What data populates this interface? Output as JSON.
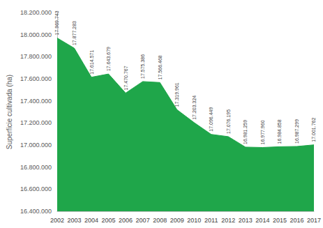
{
  "chart_data": {
    "type": "area",
    "y_label": "Superficie cultivada (ha)",
    "categories": [
      "2002",
      "2003",
      "2004",
      "2005",
      "2006",
      "2007",
      "2008",
      "2009",
      "2010",
      "2011",
      "2012",
      "2013",
      "2014",
      "2015",
      "2016",
      "2017"
    ],
    "values": [
      17969743,
      17877283,
      17614571,
      17643679,
      17470767,
      17575386,
      17566468,
      17319961,
      17203324,
      17096449,
      17076195,
      16981259,
      16977960,
      16984858,
      16987299,
      17001762
    ],
    "value_labels": [
      "17.969.743",
      "17.877.283",
      "17.614.571",
      "17.643.679",
      "17.470.767",
      "17.575.386",
      "17.566.468",
      "17.319.961",
      "17.203.324",
      "17.096.449",
      "17.076.195",
      "16.981.259",
      "16.977.960",
      "16.984.858",
      "16.987.299",
      "17.001.762"
    ],
    "data_labels": true,
    "color": "#1fa64a",
    "ylim": [
      16400000,
      18200000
    ],
    "yticks": [
      {
        "value": 16400000,
        "label": "16.400.000"
      },
      {
        "value": 16600000,
        "label": "16.600.000"
      },
      {
        "value": 16800000,
        "label": "16.800.000"
      },
      {
        "value": 17000000,
        "label": "17.000.000"
      },
      {
        "value": 17200000,
        "label": "17.200.000"
      },
      {
        "value": 17400000,
        "label": "17.400.000"
      },
      {
        "value": 17600000,
        "label": "17.600.000"
      },
      {
        "value": 17800000,
        "label": "17.800.000"
      },
      {
        "value": 18000000,
        "label": "18.000.000"
      },
      {
        "value": 18200000,
        "label": "18.200.000"
      }
    ],
    "grid": false
  }
}
